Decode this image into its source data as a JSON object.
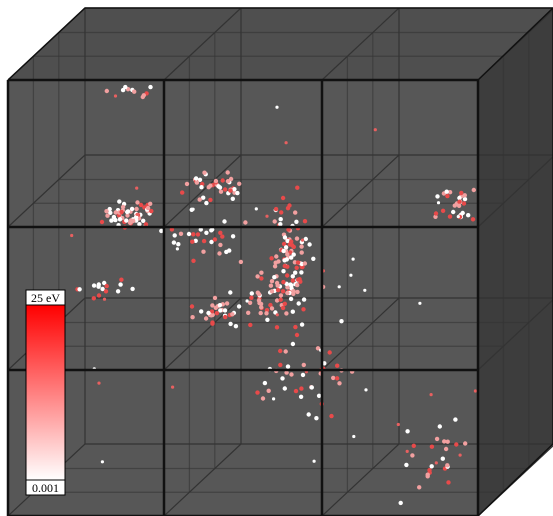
{
  "colorbar": {
    "max_label": "25 eV",
    "min_label": "0.001"
  }
}
